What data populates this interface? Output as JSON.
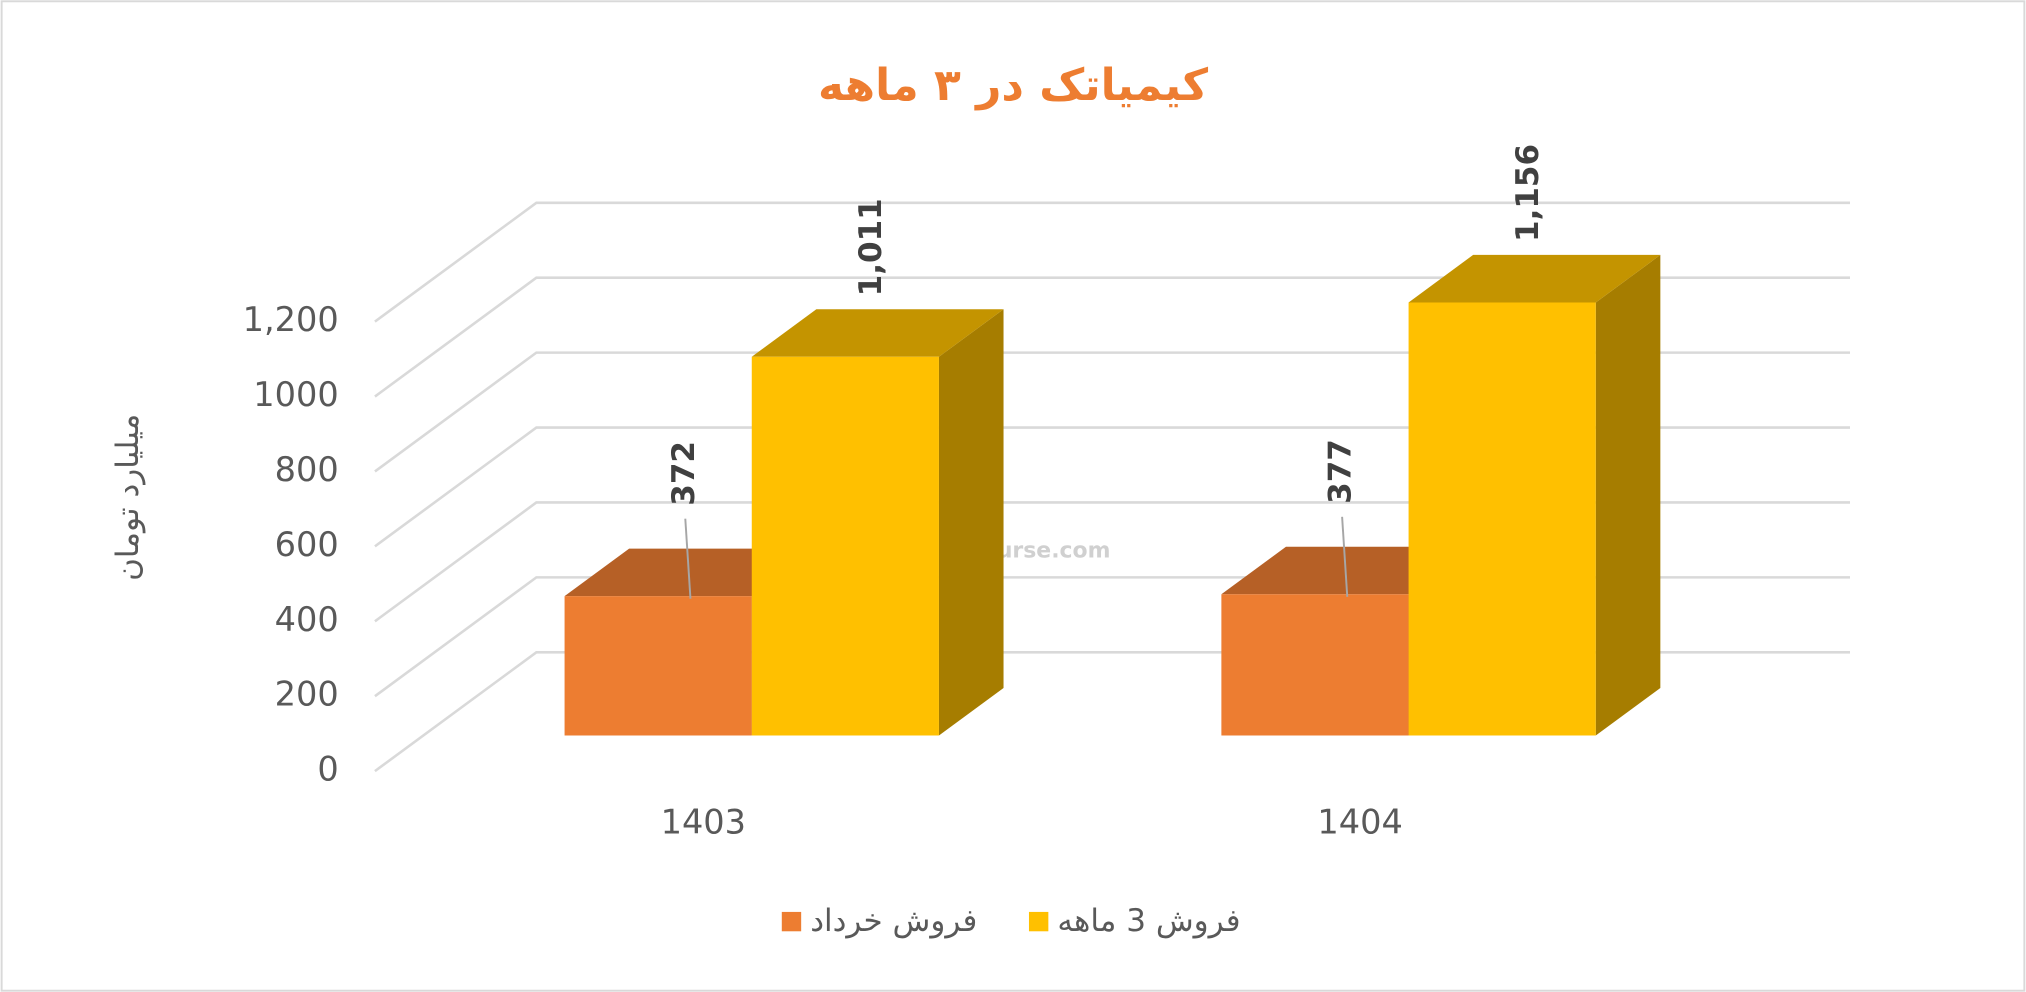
{
  "chart_data": {
    "type": "bar3d",
    "title": "کیمیاتک در ۳ ماهه",
    "y_axis_label": "میلیارد تومان",
    "watermark": "nabzebourse.com",
    "categories": [
      "1403",
      "1404"
    ],
    "series": [
      {
        "name": "فروش خرداد",
        "color": "#ED7D31",
        "values": [
          372,
          377
        ],
        "value_labels": [
          "372",
          "377"
        ]
      },
      {
        "name": "فروش 3  ماهه",
        "color": "#FFC000",
        "values": [
          1011,
          1156
        ],
        "value_labels": [
          "1,011",
          "1,156"
        ]
      }
    ],
    "ylim": [
      0,
      1200
    ],
    "yticks": [
      0,
      200,
      400,
      600,
      800,
      1000,
      {
        "value": 1200,
        "label": "1,200"
      }
    ],
    "grid": true,
    "legend": "bottom"
  }
}
